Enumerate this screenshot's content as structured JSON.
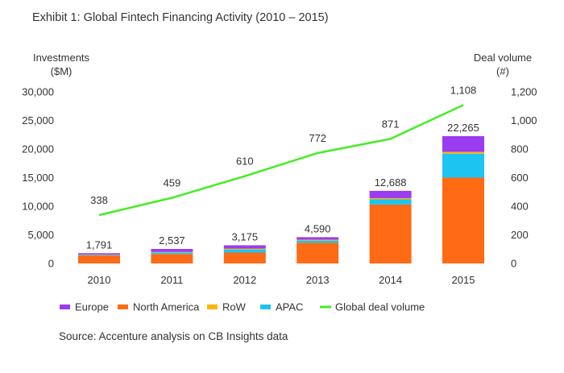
{
  "title": "Exhibit 1: Global Fintech Financing Activity (2010 – 2015)",
  "source": "Source: Accenture analysis on CB Insights data",
  "chart_data": {
    "type": "bar",
    "categories": [
      "2010",
      "2011",
      "2012",
      "2013",
      "2014",
      "2015"
    ],
    "y_left": {
      "label_line1": "Investments",
      "label_line2": "($M)",
      "ylim": [
        0,
        30000
      ],
      "ticks": [
        "0",
        "5,000",
        "10,000",
        "15,000",
        "20,000",
        "25,000",
        "30,000"
      ]
    },
    "y_right": {
      "label_line1": "Deal volume",
      "label_line2": "(#)",
      "ylim": [
        0,
        1200
      ],
      "ticks": [
        "0",
        "200",
        "400",
        "600",
        "800",
        "1,000",
        "1,200"
      ]
    },
    "stacked_series": [
      {
        "name": "North America",
        "color": "#ff6a14",
        "values": [
          1400,
          1650,
          1900,
          3600,
          10300,
          15000
        ]
      },
      {
        "name": "APAC",
        "color": "#1cc4f2",
        "values": [
          120,
          280,
          550,
          400,
          900,
          4200
        ]
      },
      {
        "name": "RoW",
        "color": "#ffb400",
        "values": [
          40,
          80,
          150,
          160,
          220,
          300
        ]
      },
      {
        "name": "Europe",
        "color": "#9b3cf0",
        "values": [
          231,
          527,
          575,
          430,
          1268,
          2765
        ]
      }
    ],
    "bar_totals": [
      1791,
      2537,
      3175,
      4590,
      12688,
      22265
    ],
    "bar_total_labels": [
      "1,791",
      "2,537",
      "3,175",
      "4,590",
      "12,688",
      "22,265"
    ],
    "line_series": {
      "name": "Global deal volume",
      "color": "#44ee22",
      "axis": "right",
      "values": [
        338,
        459,
        610,
        772,
        871,
        1108
      ],
      "labels": [
        "338",
        "459",
        "610",
        "772",
        "871",
        "1,108"
      ]
    },
    "legend": [
      {
        "name": "Europe",
        "color": "#9b3cf0",
        "kind": "bar"
      },
      {
        "name": "North America",
        "color": "#ff6a14",
        "kind": "bar"
      },
      {
        "name": "RoW",
        "color": "#ffb400",
        "kind": "bar"
      },
      {
        "name": "APAC",
        "color": "#1cc4f2",
        "kind": "bar"
      },
      {
        "name": "Global deal volume",
        "color": "#44ee22",
        "kind": "line"
      }
    ],
    "legend_position": "bottom",
    "grid": false
  }
}
